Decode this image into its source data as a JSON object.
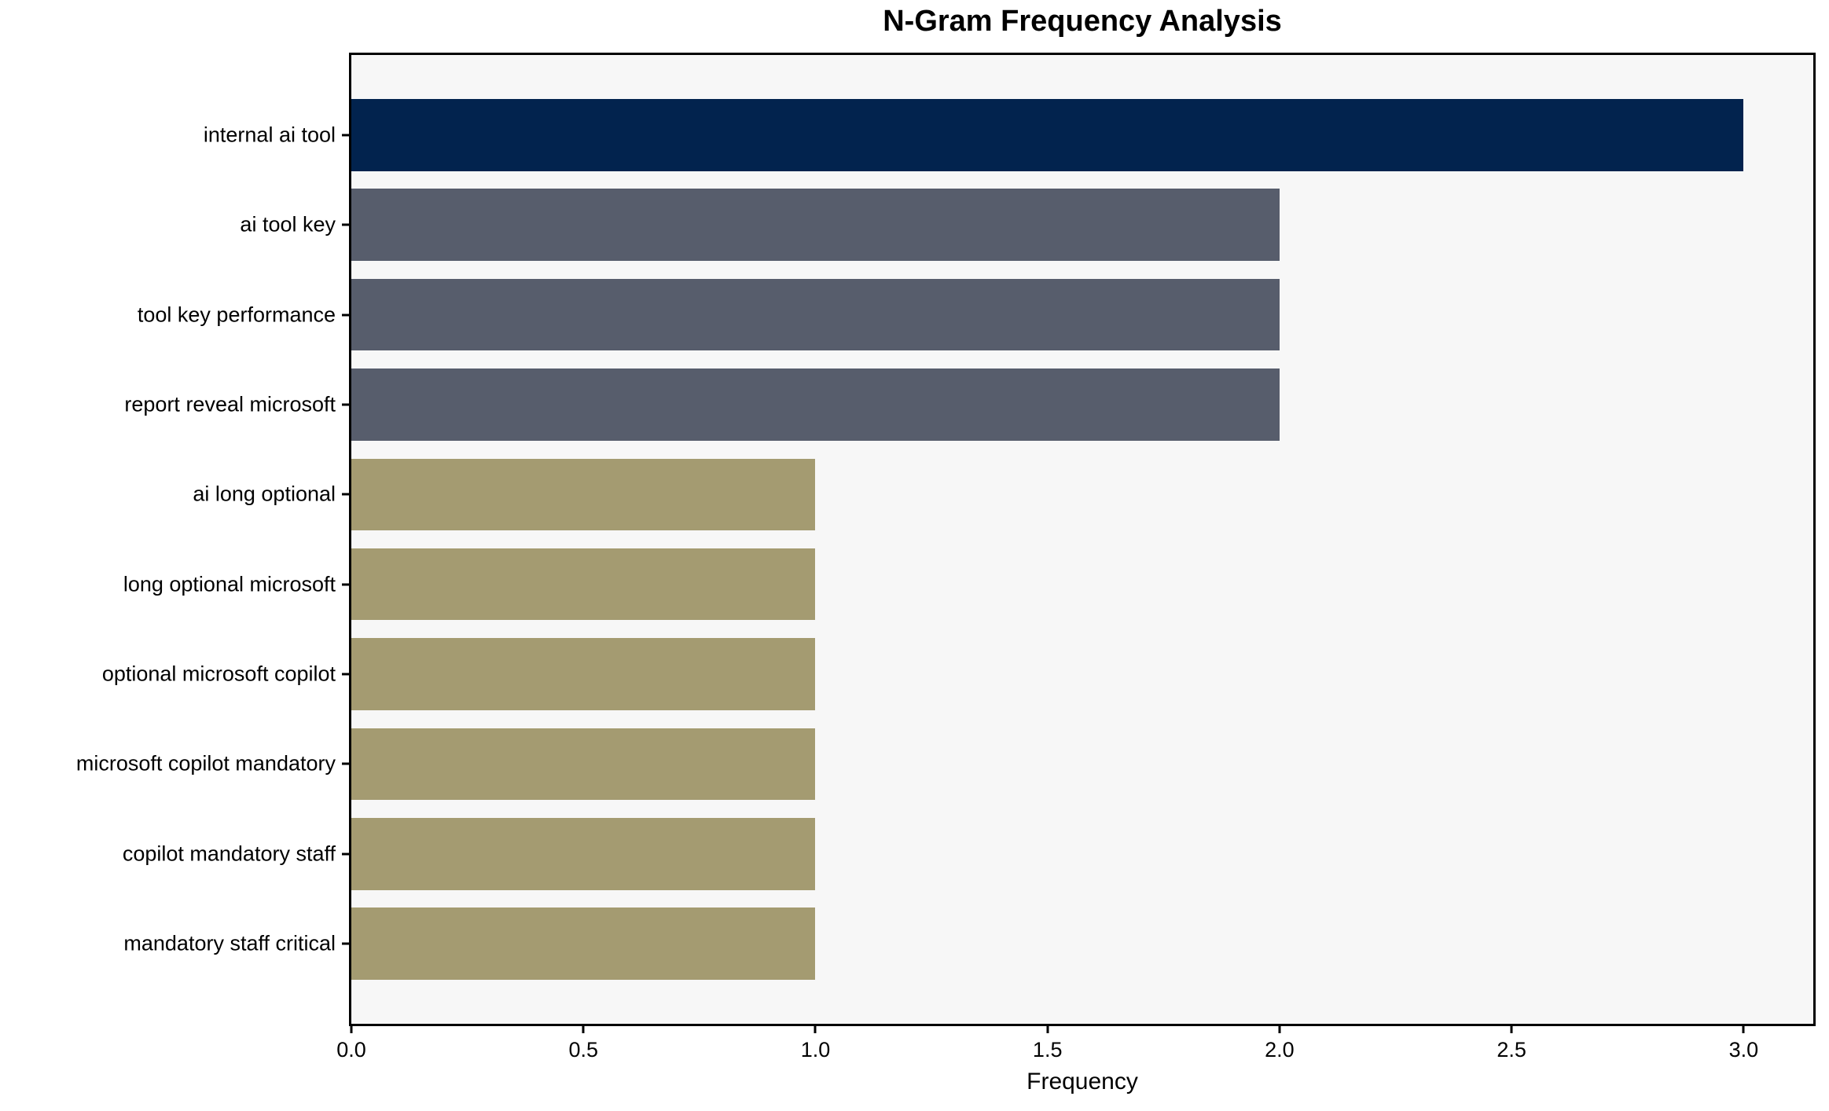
{
  "chart_data": {
    "type": "bar",
    "orientation": "horizontal",
    "title": "N-Gram Frequency Analysis",
    "xlabel": "Frequency",
    "ylabel": "",
    "categories": [
      "internal ai tool",
      "ai tool key",
      "tool key performance",
      "report reveal microsoft",
      "ai long optional",
      "long optional microsoft",
      "optional microsoft copilot",
      "microsoft copilot mandatory",
      "copilot mandatory staff",
      "mandatory staff critical"
    ],
    "values": [
      3,
      2,
      2,
      2,
      1,
      1,
      1,
      1,
      1,
      1
    ],
    "bar_colors": [
      "#02234e",
      "#575d6c",
      "#575d6c",
      "#575d6c",
      "#a49b71",
      "#a49b71",
      "#a49b71",
      "#a49b71",
      "#a49b71",
      "#a49b71"
    ],
    "x_tick_values": [
      0,
      0.5,
      1,
      1.5,
      2,
      2.5,
      3
    ],
    "x_tick_labels": [
      "0.0",
      "0.5",
      "1.0",
      "1.5",
      "2.0",
      "2.5",
      "3.0"
    ],
    "xlim": [
      0,
      3.15
    ],
    "bar_height_fraction": 0.8,
    "grid": false,
    "legend": null,
    "colors": {
      "plot_background": "#f7f7f7",
      "figure_background": "#ffffff",
      "frame": "#000000",
      "text": "#000000"
    }
  }
}
